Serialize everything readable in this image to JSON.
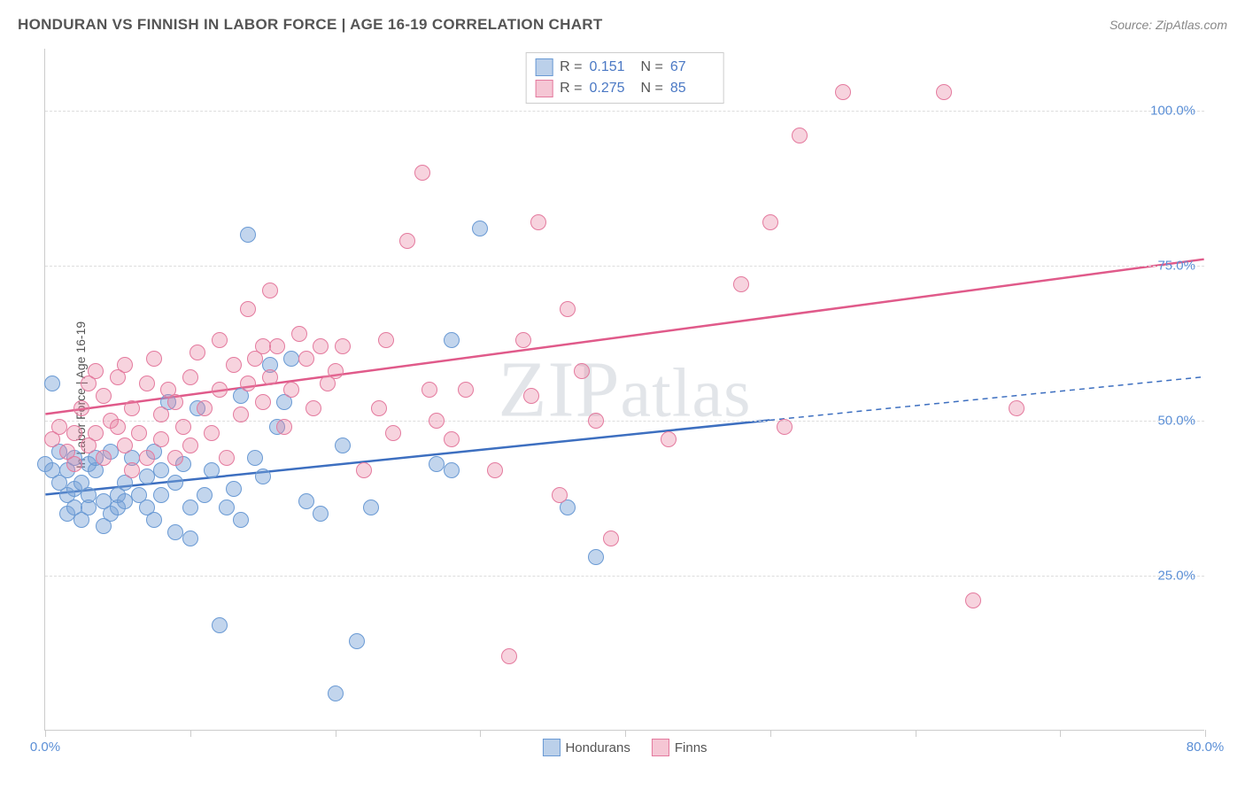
{
  "title": "HONDURAN VS FINNISH IN LABOR FORCE | AGE 16-19 CORRELATION CHART",
  "source": "Source: ZipAtlas.com",
  "y_axis_label": "In Labor Force | Age 16-19",
  "watermark": "ZIPatlas",
  "chart": {
    "type": "scatter",
    "x_domain": [
      0,
      80
    ],
    "y_domain": [
      0,
      110
    ],
    "x_ticks": [
      0,
      10,
      20,
      30,
      40,
      50,
      60,
      70,
      80
    ],
    "x_tick_labels": {
      "0": "0.0%",
      "80": "80.0%"
    },
    "y_gridlines": [
      25,
      50,
      75,
      100
    ],
    "y_tick_labels": {
      "25": "25.0%",
      "50": "50.0%",
      "75": "75.0%",
      "100": "100.0%"
    },
    "background_color": "#ffffff",
    "grid_color": "#dddddd",
    "axis_color": "#cccccc",
    "tick_label_color": "#5b8fd6",
    "series": [
      {
        "id": "hondurans",
        "label": "Hondurans",
        "color_fill": "rgba(119,162,214,0.45)",
        "color_stroke": "#6a9ad4",
        "line_color": "#3d6fc0",
        "line_width": 2.5,
        "R": "0.151",
        "N": "67",
        "regression": {
          "x1": 0,
          "y1": 38,
          "x2": 50,
          "y2": 50,
          "x2_ext": 80,
          "y2_ext": 57
        },
        "points": [
          [
            0,
            43
          ],
          [
            0.5,
            42
          ],
          [
            0.5,
            56
          ],
          [
            1,
            40
          ],
          [
            1,
            45
          ],
          [
            1.5,
            38
          ],
          [
            1.5,
            42
          ],
          [
            1.5,
            35
          ],
          [
            2,
            44
          ],
          [
            2,
            36
          ],
          [
            2,
            39
          ],
          [
            2.5,
            40
          ],
          [
            2.5,
            34
          ],
          [
            3,
            43
          ],
          [
            3,
            36
          ],
          [
            3,
            38
          ],
          [
            3.5,
            42
          ],
          [
            3.5,
            44
          ],
          [
            4,
            37
          ],
          [
            4,
            33
          ],
          [
            4.5,
            35
          ],
          [
            4.5,
            45
          ],
          [
            5,
            36
          ],
          [
            5,
            38
          ],
          [
            5.5,
            37
          ],
          [
            5.5,
            40
          ],
          [
            6,
            44
          ],
          [
            6.5,
            38
          ],
          [
            7,
            36
          ],
          [
            7,
            41
          ],
          [
            7.5,
            45
          ],
          [
            7.5,
            34
          ],
          [
            8,
            38
          ],
          [
            8,
            42
          ],
          [
            8.5,
            53
          ],
          [
            9,
            32
          ],
          [
            9,
            40
          ],
          [
            9.5,
            43
          ],
          [
            10,
            31
          ],
          [
            10,
            36
          ],
          [
            10.5,
            52
          ],
          [
            11,
            38
          ],
          [
            11.5,
            42
          ],
          [
            12,
            17
          ],
          [
            12.5,
            36
          ],
          [
            13,
            39
          ],
          [
            13.5,
            54
          ],
          [
            13.5,
            34
          ],
          [
            14,
            80
          ],
          [
            14.5,
            44
          ],
          [
            15,
            41
          ],
          [
            15.5,
            59
          ],
          [
            16,
            49
          ],
          [
            16.5,
            53
          ],
          [
            17,
            60
          ],
          [
            18,
            37
          ],
          [
            19,
            35
          ],
          [
            20,
            6
          ],
          [
            20.5,
            46
          ],
          [
            21.5,
            14.5
          ],
          [
            22.5,
            36
          ],
          [
            27,
            43
          ],
          [
            28,
            42
          ],
          [
            28,
            63
          ],
          [
            30,
            81
          ],
          [
            36,
            36
          ],
          [
            38,
            28
          ]
        ]
      },
      {
        "id": "finns",
        "label": "Finns",
        "color_fill": "rgba(232,128,160,0.35)",
        "color_stroke": "#e47a9e",
        "line_color": "#e05a8a",
        "line_width": 2.5,
        "R": "0.275",
        "N": "85",
        "regression": {
          "x1": 0,
          "y1": 51,
          "x2": 80,
          "y2": 76
        },
        "points": [
          [
            0.5,
            47
          ],
          [
            1,
            49
          ],
          [
            1.5,
            45
          ],
          [
            2,
            43
          ],
          [
            2,
            48
          ],
          [
            2.5,
            52
          ],
          [
            3,
            46
          ],
          [
            3,
            56
          ],
          [
            3.5,
            48
          ],
          [
            3.5,
            58
          ],
          [
            4,
            44
          ],
          [
            4,
            54
          ],
          [
            4.5,
            50
          ],
          [
            5,
            49
          ],
          [
            5,
            57
          ],
          [
            5.5,
            46
          ],
          [
            5.5,
            59
          ],
          [
            6,
            52
          ],
          [
            6,
            42
          ],
          [
            6.5,
            48
          ],
          [
            7,
            56
          ],
          [
            7,
            44
          ],
          [
            7.5,
            60
          ],
          [
            8,
            51
          ],
          [
            8,
            47
          ],
          [
            8.5,
            55
          ],
          [
            9,
            44
          ],
          [
            9,
            53
          ],
          [
            9.5,
            49
          ],
          [
            10,
            57
          ],
          [
            10,
            46
          ],
          [
            10.5,
            61
          ],
          [
            11,
            52
          ],
          [
            11.5,
            48
          ],
          [
            12,
            63
          ],
          [
            12,
            55
          ],
          [
            12.5,
            44
          ],
          [
            13,
            59
          ],
          [
            13.5,
            51
          ],
          [
            14,
            68
          ],
          [
            14,
            56
          ],
          [
            14.5,
            60
          ],
          [
            15,
            62
          ],
          [
            15,
            53
          ],
          [
            15.5,
            71
          ],
          [
            15.5,
            57
          ],
          [
            16,
            62
          ],
          [
            16.5,
            49
          ],
          [
            17,
            55
          ],
          [
            17.5,
            64
          ],
          [
            18,
            60
          ],
          [
            18.5,
            52
          ],
          [
            19,
            62
          ],
          [
            19.5,
            56
          ],
          [
            20,
            58
          ],
          [
            20.5,
            62
          ],
          [
            22,
            42
          ],
          [
            23,
            52
          ],
          [
            23.5,
            63
          ],
          [
            24,
            48
          ],
          [
            25,
            79
          ],
          [
            26,
            90
          ],
          [
            26.5,
            55
          ],
          [
            27,
            50
          ],
          [
            28,
            47
          ],
          [
            29,
            55
          ],
          [
            31,
            42
          ],
          [
            32,
            12
          ],
          [
            33,
            63
          ],
          [
            33.5,
            54
          ],
          [
            34,
            82
          ],
          [
            35.5,
            38
          ],
          [
            36,
            68
          ],
          [
            37,
            58
          ],
          [
            38,
            50
          ],
          [
            39,
            31
          ],
          [
            43,
            47
          ],
          [
            48,
            72
          ],
          [
            50,
            82
          ],
          [
            51,
            49
          ],
          [
            52,
            96
          ],
          [
            55,
            103
          ],
          [
            62,
            103
          ],
          [
            64,
            21
          ],
          [
            67,
            52
          ]
        ]
      }
    ]
  },
  "legend": {
    "stats_rows": [
      {
        "series": "hondurans",
        "R_label": "R =",
        "N_label": "N ="
      },
      {
        "series": "finns",
        "R_label": "R =",
        "N_label": "N ="
      }
    ],
    "bottom_items": [
      "Hondurans",
      "Finns"
    ]
  }
}
